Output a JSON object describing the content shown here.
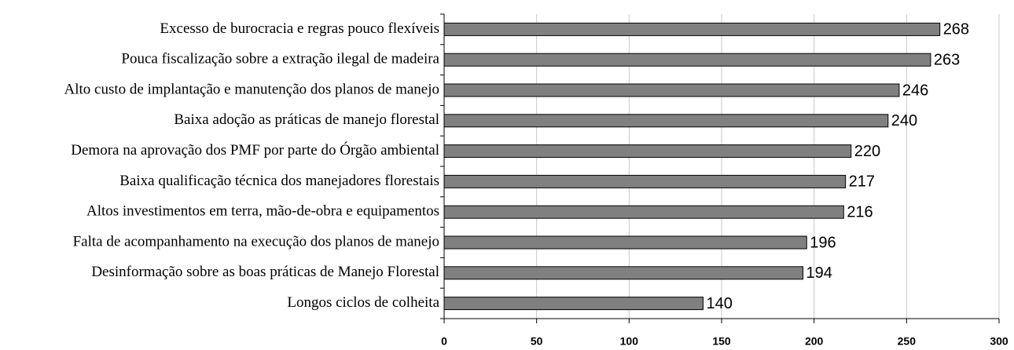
{
  "chart_data": {
    "type": "hbar",
    "categories": [
      "Excesso de burocracia e regras pouco flexíveis",
      "Pouca fiscalização sobre a extração ilegal de madeira",
      "Alto custo de implantação e manutenção dos planos de manejo",
      "Baixa adoção as práticas de manejo florestal",
      "Demora na aprovação dos PMF por parte do Órgão ambiental",
      "Baixa qualificação técnica dos manejadores florestais",
      "Altos investimentos em terra, mão-de-obra e equipamentos",
      "Falta de acompanhamento na execução dos planos de manejo",
      "Desinformação sobre as boas práticas de Manejo Florestal",
      "Longos ciclos de colheita"
    ],
    "values": [
      268,
      263,
      246,
      240,
      220,
      217,
      216,
      196,
      194,
      140
    ],
    "color": "#808080",
    "xlim": [
      0,
      300
    ],
    "xticks": [
      0,
      50,
      100,
      150,
      200,
      250,
      300
    ],
    "grid": true
  }
}
